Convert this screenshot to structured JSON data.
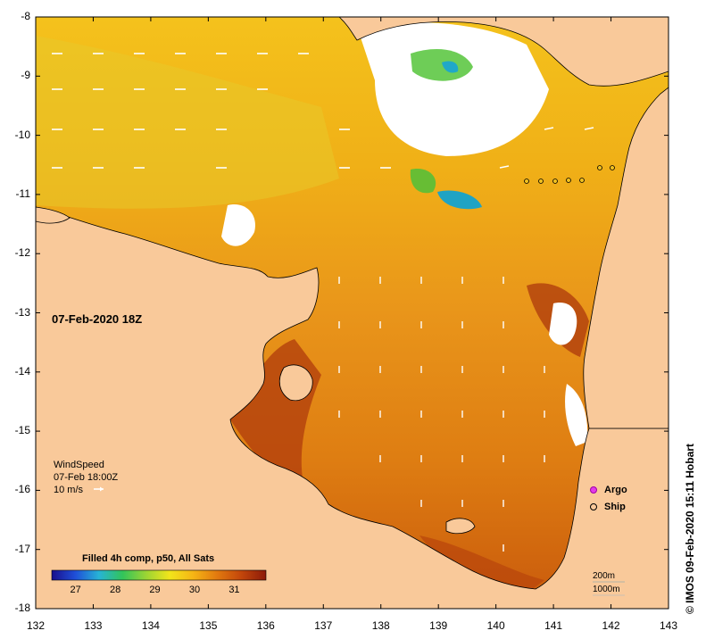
{
  "map": {
    "date_label": "07-Feb-2020 18Z",
    "credit": "© IMOS 09-Feb-2020 15:11 Hobart",
    "lat_ticks": [
      "-8",
      "-9",
      "-10",
      "-11",
      "-12",
      "-13",
      "-14",
      "-15",
      "-16",
      "-17",
      "-18"
    ],
    "lon_ticks": [
      "132",
      "133",
      "134",
      "135",
      "136",
      "137",
      "138",
      "139",
      "140",
      "141",
      "142",
      "143"
    ],
    "lat_range": [
      -18,
      -8
    ],
    "lon_range": [
      132,
      143
    ]
  },
  "wind": {
    "title": "WindSpeed",
    "time": "07-Feb 18:00Z",
    "scale": "10 m/s"
  },
  "colorbar": {
    "title": "Filled 4h comp, p50, All Sats",
    "ticks": [
      "27",
      "28",
      "29",
      "30",
      "31"
    ],
    "range": [
      26.4,
      31.8
    ],
    "colors": [
      "#1a0f8c",
      "#1f4fd8",
      "#27b3d6",
      "#32c45a",
      "#9bd434",
      "#f2e51b",
      "#f5b515",
      "#e27a0f",
      "#c4480b",
      "#8c1a0a"
    ]
  },
  "legend": {
    "argo": "Argo",
    "ship": "Ship",
    "argo_color": "#e23be8",
    "ship_color": "#000000"
  },
  "isobaths": {
    "shallow": "200m",
    "deep": "1000m"
  },
  "colors": {
    "land": "#f9c99a",
    "no_data": "#ffffff",
    "sst_warm": "#d9780f",
    "sst_hot": "#a52a0a",
    "sst_mild": "#f0b820"
  }
}
